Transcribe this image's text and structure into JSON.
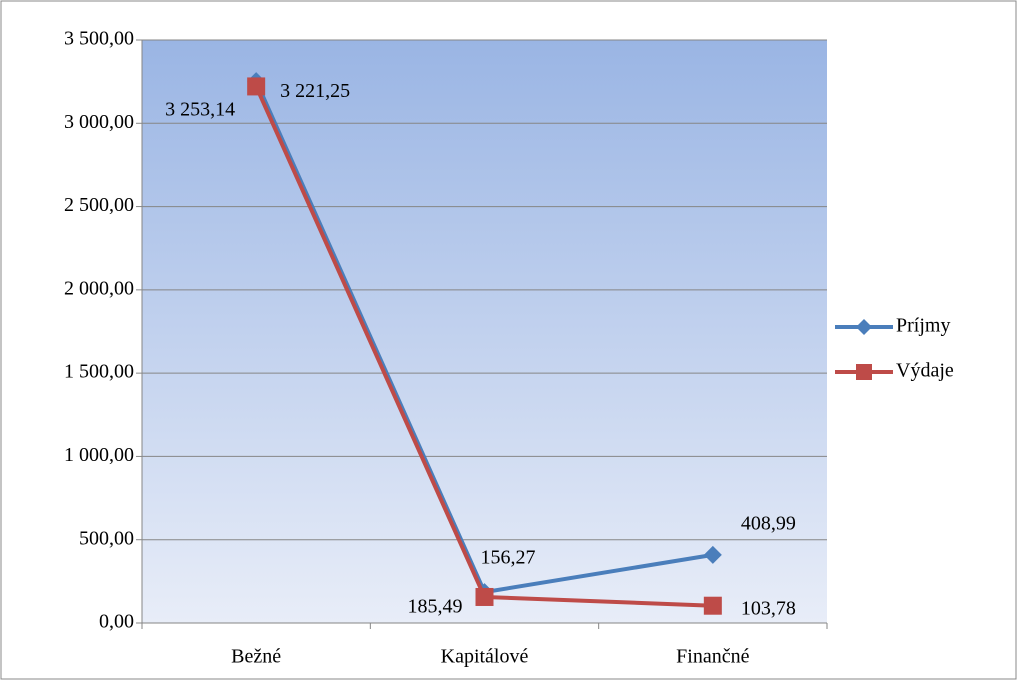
{
  "chart_data": {
    "type": "line",
    "categories": [
      "Bežné",
      "Kapitálové",
      "Finančné"
    ],
    "series": [
      {
        "name": "Príjmy",
        "color": "#4a7ebb",
        "marker": "diamond",
        "values": [
          3253.14,
          185.49,
          408.99
        ],
        "value_labels": [
          "3 253,14",
          "185,49",
          "408,99"
        ]
      },
      {
        "name": "Výdaje",
        "color": "#be4b48",
        "marker": "square",
        "values": [
          3221.25,
          156.27,
          103.78
        ],
        "value_labels": [
          "3 221,25",
          "156,27",
          "103,78"
        ]
      }
    ],
    "ylim": [
      0,
      3500
    ],
    "yticks": [
      {
        "value": 0,
        "label": "0,00"
      },
      {
        "value": 500,
        "label": "500,00"
      },
      {
        "value": 1000,
        "label": "1 000,00"
      },
      {
        "value": 1500,
        "label": "1 500,00"
      },
      {
        "value": 2000,
        "label": "2 000,00"
      },
      {
        "value": 2500,
        "label": "2 500,00"
      },
      {
        "value": 3000,
        "label": "3 000,00"
      },
      {
        "value": 3500,
        "label": "3 500,00"
      }
    ],
    "grid": true,
    "legend": "right"
  }
}
